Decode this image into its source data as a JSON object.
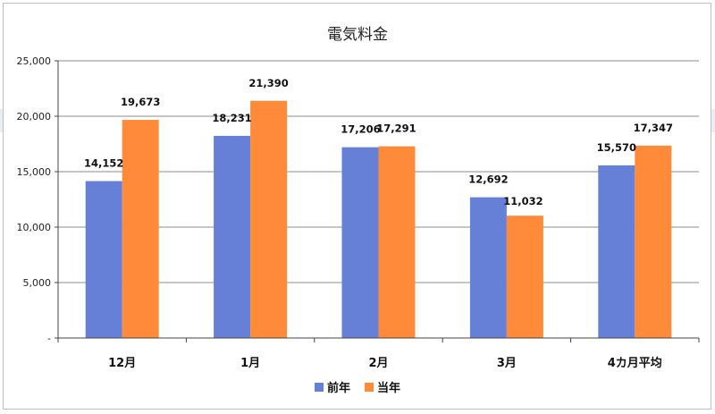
{
  "chart_data": {
    "type": "bar",
    "title": "電気料金",
    "categories": [
      "12月",
      "1月",
      "2月",
      "3月",
      "4カ月平均"
    ],
    "series": [
      {
        "name": "前年",
        "color": "#6680d8",
        "values": [
          14152,
          18231,
          17206,
          12692,
          15570
        ]
      },
      {
        "name": "当年",
        "color": "#ff8a3a",
        "values": [
          19673,
          21390,
          17291,
          11032,
          17347
        ]
      }
    ],
    "data_labels": [
      [
        "14,152",
        "18,231",
        "17,206",
        "12,692",
        "15,570"
      ],
      [
        "19,673",
        "21,390",
        "17,291",
        "11,032",
        "17,347"
      ]
    ],
    "yticks": [
      {
        "value": 0,
        "label": "-"
      },
      {
        "value": 5000,
        "label": "5,000"
      },
      {
        "value": 10000,
        "label": "10,000"
      },
      {
        "value": 15000,
        "label": "15,000"
      },
      {
        "value": 20000,
        "label": "20,000"
      },
      {
        "value": 25000,
        "label": "25,000"
      }
    ],
    "ylim": [
      0,
      25000
    ],
    "grid": true,
    "legend": "bottom",
    "xlabel": "",
    "ylabel": ""
  }
}
